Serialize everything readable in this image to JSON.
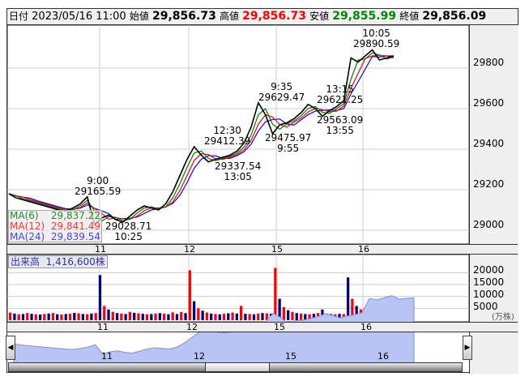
{
  "header": {
    "date_label": "日付",
    "datetime": "2023/05/16 11:00",
    "open_label": "始値",
    "open": "29,856.73",
    "high_label": "高値",
    "high": "29,856.73",
    "low_label": "安値",
    "low": "29,855.99",
    "close_label": "終値",
    "close": "29,856.09"
  },
  "legend": {
    "ma6_label": "MA(6)",
    "ma6": "29,837.22",
    "ma12_label": "MA(12)",
    "ma12": "29,841.49",
    "ma24_label": "MA(24)",
    "ma24": "29,839.54"
  },
  "volume_header": {
    "label": "出来高",
    "value": "1,416,600株"
  },
  "colors": {
    "price": "#000000",
    "ma6": "#008000",
    "ma12": "#ff0000",
    "ma24": "#0000ff",
    "vol_up": "#ff0000",
    "vol_down": "#000080",
    "navigator": "#b8c4f4"
  },
  "chart_data": {
    "type": "line",
    "price_axis": {
      "ticks": [
        "29800",
        "29600",
        "29400",
        "29200",
        "29000"
      ],
      "ylim": [
        28980,
        29940
      ]
    },
    "volume_axis": {
      "ticks": [
        "20000",
        "15000",
        "10000",
        "5000"
      ],
      "unit": "(万株)",
      "ylim": [
        0,
        22000
      ]
    },
    "date_ticks": [
      "11",
      "12",
      "15",
      "16"
    ],
    "navigator_ticks": [
      "11",
      "12",
      "15",
      "16"
    ],
    "price": [
      29180,
      29160,
      29150,
      29140,
      29130,
      29120,
      29110,
      29100,
      29095,
      29110,
      29130,
      29165,
      29028,
      29060,
      29075,
      29052,
      29040,
      29070,
      29100,
      29120,
      29110,
      29100,
      29130,
      29190,
      29270,
      29350,
      29412,
      29370,
      29337,
      29350,
      29360,
      29370,
      29390,
      29430,
      29510,
      29629,
      29570,
      29476,
      29520,
      29530,
      29550,
      29580,
      29621,
      29600,
      29563,
      29590,
      29610,
      29640,
      29850,
      29830,
      29860,
      29890,
      29840,
      29850,
      29860
    ],
    "volume": [
      3200,
      2800,
      2500,
      2600,
      3000,
      2700,
      2500,
      2400,
      2600,
      2800,
      3000,
      2500,
      2400,
      2600,
      2700,
      3100,
      2900,
      2600,
      2500,
      2800,
      3000,
      19000,
      6000,
      4500,
      3500,
      3000,
      2800,
      2600,
      3500,
      3100,
      2900,
      2700,
      2500,
      2600,
      2800,
      3000,
      2700,
      2500,
      3300,
      2600,
      3400,
      3000,
      21000,
      8000,
      5000,
      4000,
      3200,
      2800,
      2600,
      2500,
      2700,
      2900,
      3200,
      2800,
      6000,
      2700,
      2600,
      2500,
      2800,
      3000,
      2900,
      2700,
      22000,
      9000,
      5500,
      4200,
      3500,
      3000,
      2800,
      2600,
      2500,
      2700,
      3000,
      4500,
      2800,
      2600,
      2500,
      2700,
      2600,
      18000,
      9000,
      6000,
      4500,
      4000,
      3500,
      3200,
      3000,
      3300,
      2800,
      2700
    ],
    "annotations": [
      {
        "time": "9:00",
        "value": "29165.59"
      },
      {
        "time": "10:25",
        "value": "29028.71"
      },
      {
        "time": "12:30",
        "value": "29412.39"
      },
      {
        "time": "13:05",
        "value": "29337.54"
      },
      {
        "time": "9:35",
        "value": "29629.47"
      },
      {
        "time": "9:55",
        "value": "29475.97"
      },
      {
        "time": "13:15",
        "value": "29621.25"
      },
      {
        "time": "13:55",
        "value": "29563.09"
      },
      {
        "time": "10:05",
        "value": "29890.59"
      }
    ]
  }
}
